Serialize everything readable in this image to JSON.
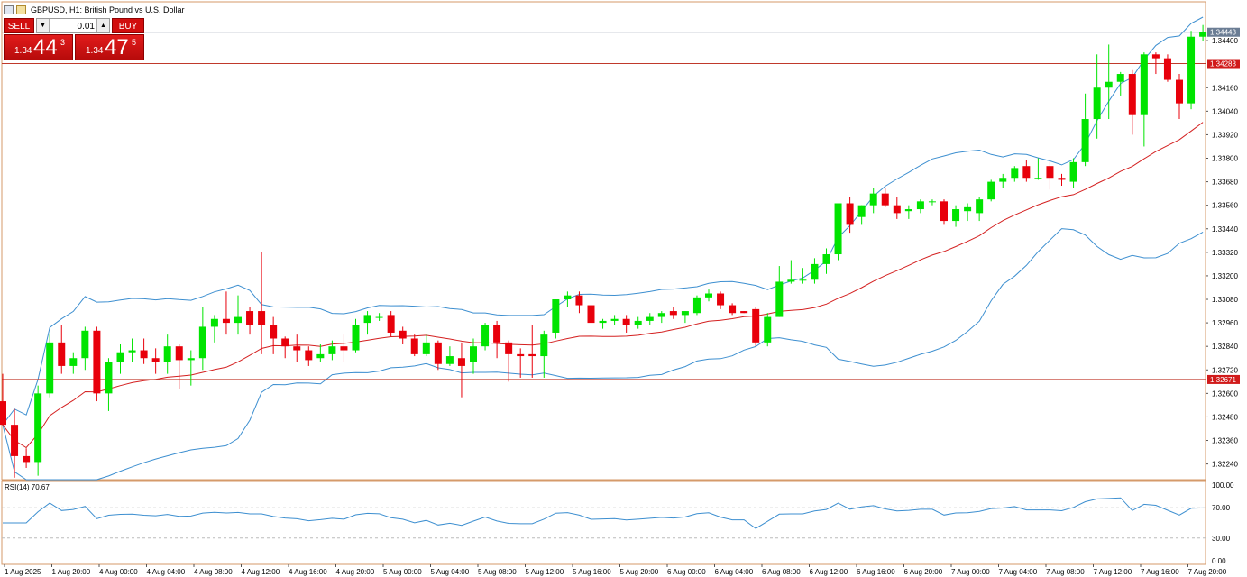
{
  "title": {
    "symbol_label": "GBPUSD, H1:  British Pound vs U.S. Dollar"
  },
  "trade_panel": {
    "sell_label": "SELL",
    "buy_label": "BUY",
    "lot_value": "0.01",
    "sell_price_small": "1.34",
    "sell_price_big": "44",
    "sell_price_sup": "3",
    "buy_price_small": "1.34",
    "buy_price_big": "47",
    "buy_price_sup": "5"
  },
  "price_axis": {
    "current_price": "1.34443",
    "line_upper": "1.34283",
    "line_lower": "1.32671",
    "ticks": [
      "1.34400",
      "1.34160",
      "1.34040",
      "1.33920",
      "1.33800",
      "1.33680",
      "1.33560",
      "1.33440",
      "1.33320",
      "1.33200",
      "1.33080",
      "1.32960",
      "1.32840",
      "1.32720",
      "1.32600",
      "1.32480",
      "1.32360",
      "1.32240"
    ]
  },
  "rsi": {
    "label": "RSI(14) 70.67",
    "ticks": [
      "100.00",
      "70.00",
      "30.00",
      "0.00"
    ]
  },
  "time_axis": [
    "1 Aug 2025",
    "1 Aug 20:00",
    "4 Aug 00:00",
    "4 Aug 04:00",
    "4 Aug 08:00",
    "4 Aug 12:00",
    "4 Aug 16:00",
    "4 Aug 20:00",
    "5 Aug 00:00",
    "5 Aug 04:00",
    "5 Aug 08:00",
    "5 Aug 12:00",
    "5 Aug 16:00",
    "5 Aug 20:00",
    "6 Aug 00:00",
    "6 Aug 04:00",
    "6 Aug 08:00",
    "6 Aug 12:00",
    "6 Aug 16:00",
    "6 Aug 20:00",
    "7 Aug 00:00",
    "7 Aug 04:00",
    "7 Aug 08:00",
    "7 Aug 12:00",
    "7 Aug 16:00",
    "7 Aug 20:00"
  ],
  "colors": {
    "bull": "#00e400",
    "bear": "#e8000b",
    "band": "#3d8fd0",
    "ma": "#d42020",
    "level_line": "#c0392b",
    "frame": "#d59a6a"
  },
  "chart_data": {
    "type": "candlestick",
    "ylim": [
      1.3216,
      1.3452
    ],
    "candles": [
      [
        1.3256,
        1.327,
        1.3244,
        1.3244
      ],
      [
        1.3244,
        1.3252,
        1.3217,
        1.3228
      ],
      [
        1.3228,
        1.3232,
        1.3222,
        1.3225
      ],
      [
        1.3225,
        1.3264,
        1.3218,
        1.326
      ],
      [
        1.326,
        1.329,
        1.3258,
        1.3286
      ],
      [
        1.3286,
        1.3295,
        1.327,
        1.3274
      ],
      [
        1.3274,
        1.3281,
        1.327,
        1.3278
      ],
      [
        1.3278,
        1.3294,
        1.3272,
        1.3292
      ],
      [
        1.3292,
        1.3294,
        1.3256,
        1.326
      ],
      [
        1.326,
        1.3278,
        1.3251,
        1.3276
      ],
      [
        1.3276,
        1.3285,
        1.327,
        1.3281
      ],
      [
        1.3281,
        1.3288,
        1.3276,
        1.3282
      ],
      [
        1.3282,
        1.3288,
        1.3275,
        1.3278
      ],
      [
        1.3278,
        1.3283,
        1.327,
        1.3276
      ],
      [
        1.3276,
        1.329,
        1.327,
        1.3284
      ],
      [
        1.3284,
        1.3285,
        1.3262,
        1.3277
      ],
      [
        1.3277,
        1.3282,
        1.3264,
        1.3278
      ],
      [
        1.3278,
        1.3304,
        1.3272,
        1.3294
      ],
      [
        1.3294,
        1.33,
        1.3286,
        1.3298
      ],
      [
        1.3298,
        1.3312,
        1.329,
        1.3296
      ],
      [
        1.3296,
        1.331,
        1.329,
        1.3299
      ],
      [
        1.3302,
        1.3304,
        1.329,
        1.3295
      ],
      [
        1.3302,
        1.3332,
        1.328,
        1.3295
      ],
      [
        1.3295,
        1.3299,
        1.328,
        1.3288
      ],
      [
        1.3288,
        1.3289,
        1.3278,
        1.3284
      ],
      [
        1.3284,
        1.329,
        1.3276,
        1.3282
      ],
      [
        1.3282,
        1.3284,
        1.3274,
        1.3277
      ],
      [
        1.3278,
        1.3285,
        1.3276,
        1.328
      ],
      [
        1.328,
        1.3287,
        1.3277,
        1.3284
      ],
      [
        1.3284,
        1.329,
        1.3276,
        1.3282
      ],
      [
        1.3282,
        1.3298,
        1.3281,
        1.3295
      ],
      [
        1.3296,
        1.3302,
        1.329,
        1.33
      ],
      [
        1.3299,
        1.3301,
        1.3297,
        1.3299
      ],
      [
        1.33,
        1.3302,
        1.3289,
        1.3291
      ],
      [
        1.3292,
        1.3294,
        1.3285,
        1.3288
      ],
      [
        1.3288,
        1.329,
        1.3279,
        1.328
      ],
      [
        1.328,
        1.329,
        1.3279,
        1.3286
      ],
      [
        1.3286,
        1.3287,
        1.3272,
        1.3275
      ],
      [
        1.3275,
        1.3284,
        1.3274,
        1.3279
      ],
      [
        1.3278,
        1.3286,
        1.3258,
        1.3274
      ],
      [
        1.3276,
        1.3288,
        1.327,
        1.3284
      ],
      [
        1.3284,
        1.3296,
        1.3282,
        1.3295
      ],
      [
        1.3295,
        1.3297,
        1.3278,
        1.3286
      ],
      [
        1.3286,
        1.3287,
        1.3266,
        1.328
      ],
      [
        1.328,
        1.3283,
        1.3268,
        1.3279
      ],
      [
        1.328,
        1.3295,
        1.3268,
        1.3279
      ],
      [
        1.3279,
        1.3292,
        1.3268,
        1.329
      ],
      [
        1.3291,
        1.3308,
        1.3288,
        1.3308
      ],
      [
        1.3308,
        1.3312,
        1.3304,
        1.331
      ],
      [
        1.331,
        1.3312,
        1.3301,
        1.3305
      ],
      [
        1.3305,
        1.3306,
        1.3294,
        1.3296
      ],
      [
        1.3296,
        1.3298,
        1.3293,
        1.3297
      ],
      [
        1.3297,
        1.33,
        1.3295,
        1.3298
      ],
      [
        1.3298,
        1.33,
        1.3291,
        1.3295
      ],
      [
        1.3295,
        1.3299,
        1.3293,
        1.3297
      ],
      [
        1.3297,
        1.3301,
        1.3295,
        1.3299
      ],
      [
        1.3299,
        1.3302,
        1.3296,
        1.3301
      ],
      [
        1.3302,
        1.3304,
        1.3298,
        1.33
      ],
      [
        1.33,
        1.3302,
        1.3296,
        1.3302
      ],
      [
        1.3301,
        1.331,
        1.33,
        1.3309
      ],
      [
        1.3309,
        1.3313,
        1.3307,
        1.3311
      ],
      [
        1.3311,
        1.3312,
        1.3303,
        1.3305
      ],
      [
        1.3305,
        1.3306,
        1.33,
        1.3301
      ],
      [
        1.3302,
        1.3302,
        1.3301,
        1.3301
      ],
      [
        1.3303,
        1.3304,
        1.3284,
        1.3286
      ],
      [
        1.3286,
        1.3301,
        1.3284,
        1.3299
      ],
      [
        1.3299,
        1.3325,
        1.3299,
        1.3317
      ],
      [
        1.3317,
        1.3328,
        1.3316,
        1.3318
      ],
      [
        1.3318,
        1.3324,
        1.3316,
        1.3318
      ],
      [
        1.3318,
        1.3329,
        1.3316,
        1.3326
      ],
      [
        1.3326,
        1.3334,
        1.3321,
        1.3331
      ],
      [
        1.3331,
        1.3357,
        1.3328,
        1.3357
      ],
      [
        1.3357,
        1.336,
        1.3342,
        1.3346
      ],
      [
        1.335,
        1.3356,
        1.3346,
        1.3356
      ],
      [
        1.3356,
        1.3365,
        1.3352,
        1.3362
      ],
      [
        1.3362,
        1.3365,
        1.3355,
        1.3356
      ],
      [
        1.3356,
        1.336,
        1.3349,
        1.3352
      ],
      [
        1.3353,
        1.3356,
        1.3349,
        1.3354
      ],
      [
        1.3354,
        1.3359,
        1.3352,
        1.3358
      ],
      [
        1.3358,
        1.3359,
        1.3356,
        1.3358
      ],
      [
        1.3358,
        1.3359,
        1.3346,
        1.3348
      ],
      [
        1.3348,
        1.3356,
        1.3345,
        1.3354
      ],
      [
        1.3353,
        1.3357,
        1.3348,
        1.3355
      ],
      [
        1.3352,
        1.336,
        1.3348,
        1.3359
      ],
      [
        1.3359,
        1.3369,
        1.3358,
        1.3368
      ],
      [
        1.3368,
        1.3372,
        1.3365,
        1.337
      ],
      [
        1.337,
        1.3376,
        1.3368,
        1.3375
      ],
      [
        1.3376,
        1.3379,
        1.3368,
        1.337
      ],
      [
        1.337,
        1.338,
        1.3369,
        1.337
      ],
      [
        1.3376,
        1.3379,
        1.3364,
        1.337
      ],
      [
        1.337,
        1.3372,
        1.3366,
        1.3369
      ],
      [
        1.3368,
        1.338,
        1.3365,
        1.3378
      ],
      [
        1.3378,
        1.3413,
        1.3376,
        1.34
      ],
      [
        1.34,
        1.3433,
        1.339,
        1.3416
      ],
      [
        1.3416,
        1.3438,
        1.34,
        1.3419
      ],
      [
        1.3419,
        1.3424,
        1.3412,
        1.3423
      ],
      [
        1.3423,
        1.3425,
        1.3392,
        1.3402
      ],
      [
        1.3402,
        1.3434,
        1.3386,
        1.3433
      ],
      [
        1.3433,
        1.3434,
        1.3423,
        1.3431
      ],
      [
        1.3431,
        1.3433,
        1.3419,
        1.342
      ],
      [
        1.342,
        1.3423,
        1.34,
        1.3408
      ],
      [
        1.3408,
        1.3445,
        1.3405,
        1.3442
      ],
      [
        1.3442,
        1.3448,
        1.344,
        1.34443
      ]
    ]
  }
}
